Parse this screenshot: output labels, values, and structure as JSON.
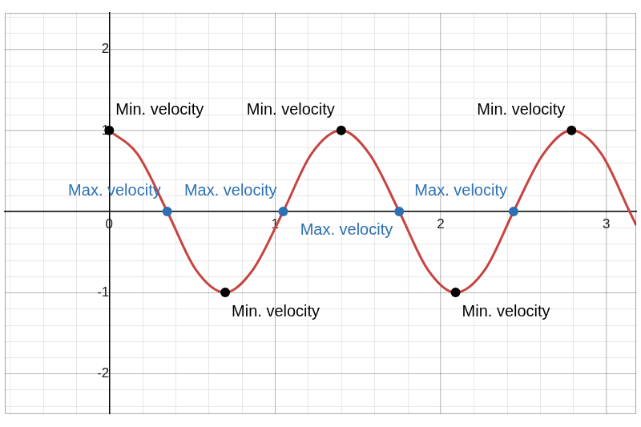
{
  "chart_data": {
    "type": "line",
    "xlim": [
      -0.63,
      3.18
    ],
    "xticks": [
      0,
      1,
      2,
      3
    ],
    "ylim": [
      -2.5,
      2.45
    ],
    "yticks": [
      -2,
      -1,
      1,
      2
    ],
    "grid": true,
    "series": [
      {
        "type": "line",
        "color": "#c74440",
        "line_style": "solid",
        "x": [
          0,
          0.17,
          0.35,
          0.52,
          0.7,
          0.87,
          1.05,
          1.22,
          1.4,
          1.57,
          1.75,
          1.92,
          2.09,
          2.27,
          2.44,
          2.62,
          2.79,
          2.97,
          3.14,
          3.18
        ],
        "values": [
          1,
          0.71,
          0,
          -0.71,
          -1,
          -0.71,
          0,
          0.71,
          1,
          0.71,
          0,
          -0.71,
          -1,
          -0.71,
          0,
          0.71,
          1,
          0.71,
          0,
          -0.17
        ]
      },
      {
        "type": "scatter",
        "color": "#000000",
        "marker": "circle",
        "x": [
          0,
          0.7,
          1.4,
          2.09,
          2.79
        ],
        "values": [
          1,
          -1,
          1,
          -1,
          1
        ],
        "labels": [
          "Min. velocity",
          "Min. velocity",
          "Min. velocity",
          "Min. velocity",
          "Min. velocity"
        ]
      },
      {
        "type": "scatter",
        "color": "#2d70b3",
        "marker": "circle",
        "x": [
          0.35,
          1.05,
          1.75,
          2.44
        ],
        "values": [
          0,
          0,
          0,
          0
        ],
        "labels": [
          "Max. velocity",
          "Max. velocity",
          "Max. velocity",
          "Max. velocity"
        ]
      }
    ]
  }
}
